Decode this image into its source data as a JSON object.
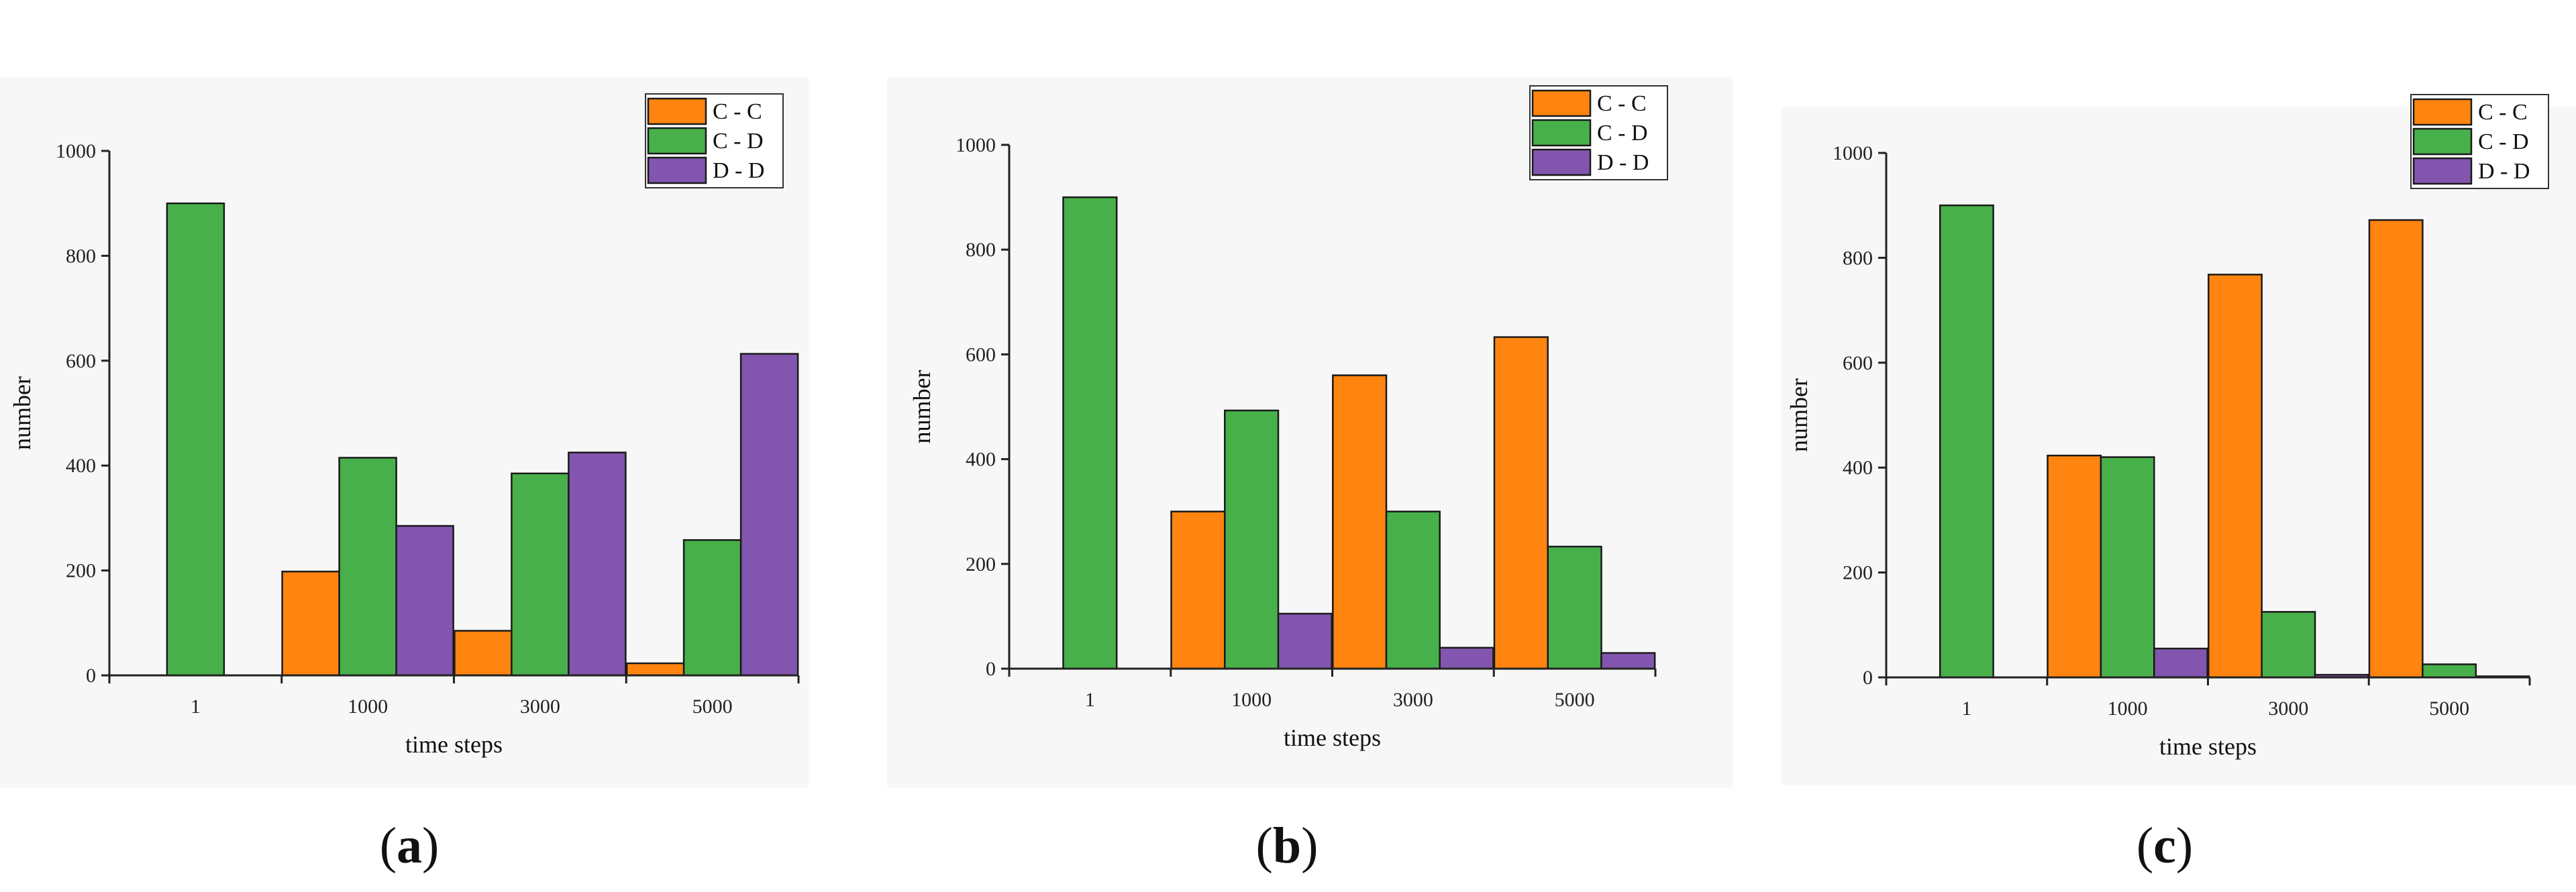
{
  "colors": {
    "C - C": "#ff8410",
    "C - D": "#48b04a",
    "D - D": "#8255ae"
  },
  "captions": [
    {
      "open": "(",
      "letter": "a",
      "close": ")"
    },
    {
      "open": "(",
      "letter": "b",
      "close": ")"
    },
    {
      "open": "(",
      "letter": "c",
      "close": ")"
    }
  ],
  "chart_data": [
    {
      "type": "bar",
      "xlabel": "time steps",
      "ylabel": "number",
      "categories": [
        "1",
        "1000",
        "3000",
        "5000"
      ],
      "ylim": [
        0,
        1000
      ],
      "yticks": [
        0,
        200,
        400,
        600,
        800,
        1000
      ],
      "legend_position": "top-right",
      "series": [
        {
          "name": "C - C",
          "values": [
            0,
            198,
            85,
            23
          ]
        },
        {
          "name": "C - D",
          "values": [
            900,
            415,
            385,
            258
          ]
        },
        {
          "name": "D - D",
          "values": [
            0,
            285,
            425,
            613
          ]
        }
      ]
    },
    {
      "type": "bar",
      "xlabel": "time steps",
      "ylabel": "number",
      "categories": [
        "1",
        "1000",
        "3000",
        "5000"
      ],
      "ylim": [
        0,
        1000
      ],
      "yticks": [
        0,
        200,
        400,
        600,
        800,
        1000
      ],
      "legend_position": "top-right",
      "series": [
        {
          "name": "C - C",
          "values": [
            0,
            300,
            560,
            633
          ]
        },
        {
          "name": "C - D",
          "values": [
            900,
            493,
            300,
            233
          ]
        },
        {
          "name": "D - D",
          "values": [
            0,
            105,
            40,
            30
          ]
        }
      ]
    },
    {
      "type": "bar",
      "xlabel": "time steps",
      "ylabel": "number",
      "categories": [
        "1",
        "1000",
        "3000",
        "5000"
      ],
      "ylim": [
        0,
        1000
      ],
      "yticks": [
        0,
        200,
        400,
        600,
        800,
        1000
      ],
      "legend_position": "top-right",
      "series": [
        {
          "name": "C - C",
          "values": [
            0,
            423,
            768,
            872
          ]
        },
        {
          "name": "C - D",
          "values": [
            900,
            420,
            125,
            25
          ]
        },
        {
          "name": "D - D",
          "values": [
            0,
            55,
            5,
            2
          ]
        }
      ]
    }
  ]
}
